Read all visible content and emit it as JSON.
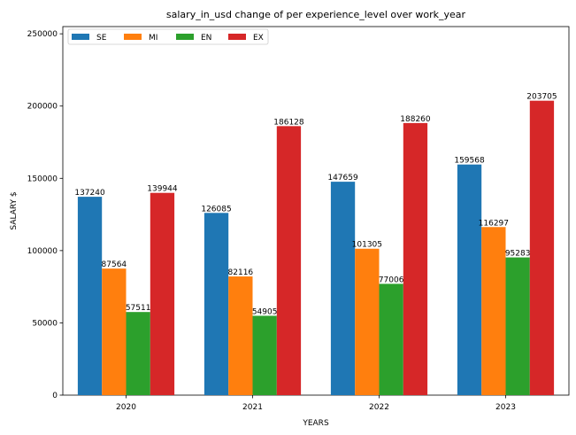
{
  "chart_data": {
    "type": "bar",
    "title": "salary_in_usd change of per experience_level over work_year",
    "xlabel": "YEARS",
    "ylabel": "SALARY $",
    "categories": [
      "2020",
      "2021",
      "2022",
      "2023"
    ],
    "ylim": [
      0,
      255000
    ],
    "yticks": [
      0,
      50000,
      100000,
      150000,
      200000,
      250000
    ],
    "grid": false,
    "legend_position": "top-left",
    "series": [
      {
        "name": "SE",
        "color": "#1f77b4",
        "values": [
          137240,
          126085,
          147659,
          159568
        ]
      },
      {
        "name": "MI",
        "color": "#ff7f0e",
        "values": [
          87564,
          82116,
          101305,
          116297
        ]
      },
      {
        "name": "EN",
        "color": "#2ca02c",
        "values": [
          57511,
          54905,
          77006,
          95283
        ]
      },
      {
        "name": "EX",
        "color": "#d62728",
        "values": [
          139944,
          186128,
          188260,
          203705
        ]
      }
    ]
  }
}
